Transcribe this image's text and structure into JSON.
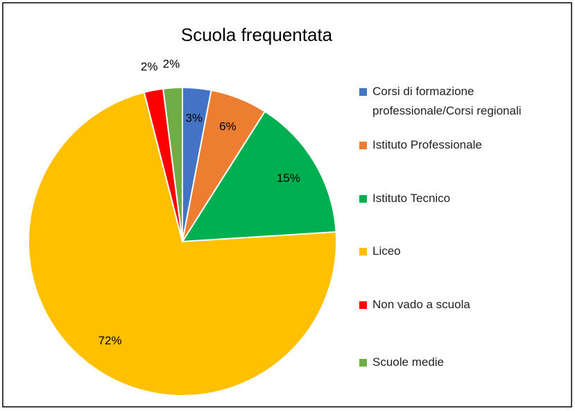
{
  "chart_data": {
    "type": "pie",
    "title": "Scuola frequentata",
    "categories": [
      "Corsi di formazione professionale/Corsi regionali",
      "Istituto Professionale",
      "Istituto Tecnico",
      "Liceo",
      "Non vado a scuola",
      "Scuole medie"
    ],
    "values": [
      3,
      6,
      15,
      72,
      2,
      2
    ],
    "value_labels": [
      "3%",
      "6%",
      "15%",
      "72%",
      "2%",
      "2%"
    ],
    "colors": [
      "#4472c4",
      "#ed7d31",
      "#00b050",
      "#ffc000",
      "#ff0000",
      "#70ad47"
    ],
    "legend": "right"
  }
}
